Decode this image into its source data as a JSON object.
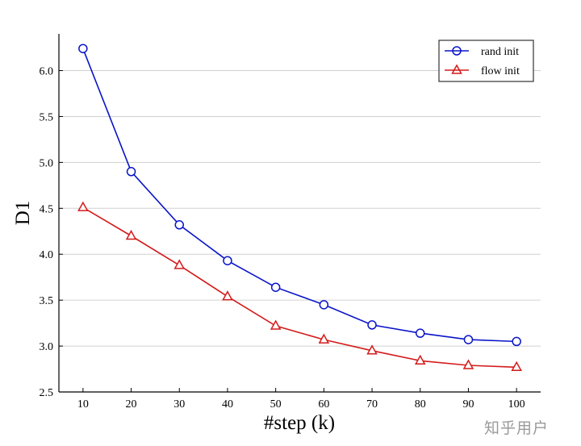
{
  "chart_data": {
    "type": "line",
    "xlabel": "#step (k)",
    "ylabel": "D1",
    "xlim": [
      5,
      105
    ],
    "ylim": [
      2.5,
      6.4
    ],
    "x": [
      10,
      20,
      30,
      40,
      50,
      60,
      70,
      80,
      90,
      100
    ],
    "x_ticks": [
      "10",
      "20",
      "30",
      "40",
      "50",
      "60",
      "70",
      "80",
      "90",
      "100"
    ],
    "y_ticks": [
      "2.5",
      "3.0",
      "3.5",
      "4.0",
      "4.5",
      "5.0",
      "5.5",
      "6.0"
    ],
    "y_tick_values": [
      2.5,
      3.0,
      3.5,
      4.0,
      4.5,
      5.0,
      5.5,
      6.0
    ],
    "grid": "horizontal",
    "legend_position": "top-right",
    "series": [
      {
        "name": "rand init",
        "color": "#0a14c8",
        "marker": "circle",
        "values": [
          6.24,
          4.9,
          4.32,
          3.93,
          3.64,
          3.45,
          3.23,
          3.14,
          3.07,
          3.05
        ]
      },
      {
        "name": "flow init",
        "color": "#d41a1a",
        "marker": "triangle",
        "values": [
          4.51,
          4.2,
          3.88,
          3.54,
          3.22,
          3.07,
          2.95,
          2.84,
          2.79,
          2.77
        ]
      }
    ]
  },
  "watermark": "知乎用户"
}
